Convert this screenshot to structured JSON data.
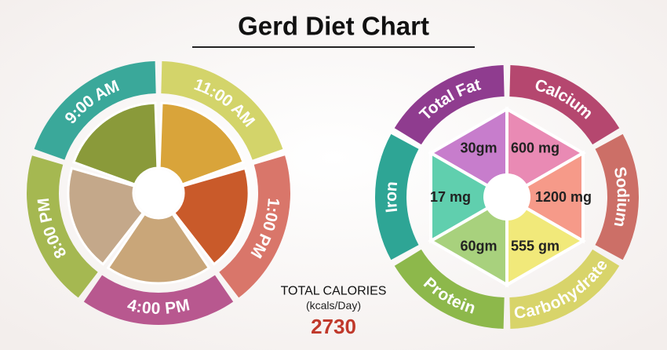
{
  "title": "Gerd Diet Chart",
  "meal_times": [
    "9:00 AM",
    "11:00 AM",
    "1:00 PM",
    "4:00 PM",
    "8:00 PM"
  ],
  "nutrients": [
    {
      "name": "Total Fat",
      "amount": "30gm"
    },
    {
      "name": "Calcium",
      "amount": "600 mg"
    },
    {
      "name": "Sodium",
      "amount": "1200 mg"
    },
    {
      "name": "Carbohydrate",
      "amount": "555 gm"
    },
    {
      "name": "Protein",
      "amount": "60gm"
    },
    {
      "name": "Iron",
      "amount": "17 mg"
    }
  ],
  "total_calories": {
    "label": "TOTAL CALORIES",
    "unit": "(kcals/Day)",
    "value": "2730"
  }
}
